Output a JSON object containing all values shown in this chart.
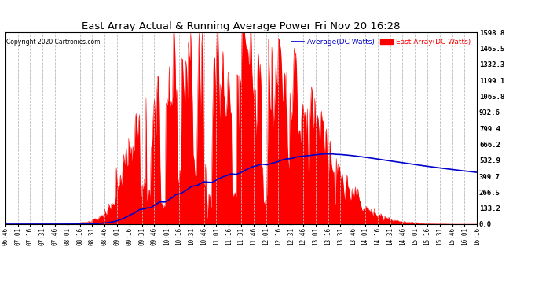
{
  "title": "East Array Actual & Running Average Power Fri Nov 20 16:28",
  "copyright": "Copyright 2020 Cartronics.com",
  "legend_average": "Average(DC Watts)",
  "legend_east": "East Array(DC Watts)",
  "ylabel_right_ticks": [
    0.0,
    133.2,
    266.5,
    399.7,
    532.9,
    666.2,
    799.4,
    932.6,
    1065.8,
    1199.1,
    1332.3,
    1465.5,
    1598.8
  ],
  "ymax": 1598.8,
  "ymin": 0.0,
  "background_color": "#ffffff",
  "plot_bg_color": "#ffffff",
  "grid_color": "#bbbbbb",
  "east_array_color": "#ff0000",
  "average_color": "#0000cc",
  "title_color": "#000000",
  "copyright_color": "#000000",
  "time_labels": [
    "06:46",
    "07:01",
    "07:16",
    "07:31",
    "07:46",
    "08:01",
    "08:16",
    "08:31",
    "08:46",
    "09:01",
    "09:16",
    "09:31",
    "09:46",
    "10:01",
    "10:16",
    "10:31",
    "10:46",
    "11:01",
    "11:16",
    "11:31",
    "11:46",
    "12:01",
    "12:16",
    "12:31",
    "12:46",
    "13:01",
    "13:16",
    "13:31",
    "13:46",
    "14:01",
    "14:16",
    "14:31",
    "14:46",
    "15:01",
    "15:16",
    "15:31",
    "15:46",
    "16:01",
    "16:16"
  ]
}
